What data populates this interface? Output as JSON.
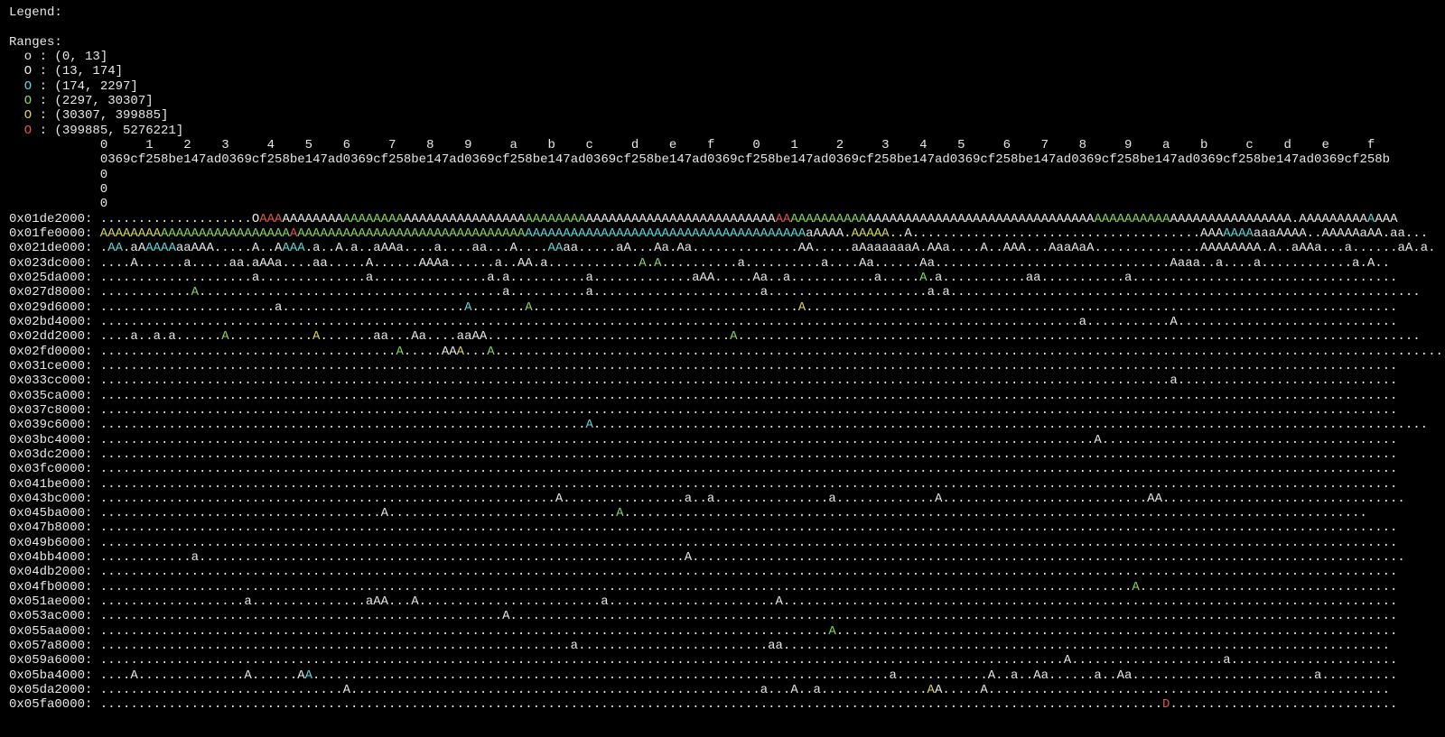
{
  "legend_title": "Legend:",
  "ranges_title": "Ranges:",
  "default_color": "#e8e8e8",
  "ranges": [
    {
      "symbol": "o",
      "label": ": (0, 13]",
      "color": "#e8e8e8"
    },
    {
      "symbol": "O",
      "label": ": (13, 174]",
      "color": "#e8e8e8"
    },
    {
      "symbol": "O",
      "label": ": (174, 2297]",
      "color": "#5fd7d7"
    },
    {
      "symbol": "O",
      "label": ": (2297, 30307]",
      "color": "#87d75f"
    },
    {
      "symbol": "O",
      "label": ": (30307, 399885]",
      "color": "#d7d75f"
    },
    {
      "symbol": "O",
      "label": ": (399885, 5276221]",
      "color": "#e05555"
    }
  ],
  "header": {
    "digits": "0     1    2    3     4    5    6     7    8    9     a    b    c     d    e    f     0    1     2     3    4    5     6    7    8     9    a    b     c    d    e     f",
    "offsets": "0369cf258be147ad0369cf258be147ad0369cf258be147ad0369cf258be147ad0369cf258be147ad0369cf258be147ad0369cf258be147ad0369cf258be147ad0369cf258be147ad0369cf258be147ad0369cf258b",
    "zeros": [
      "0",
      "0",
      "0"
    ]
  },
  "rows": [
    {
      "address": "0x01de2000:",
      "segments": [
        {
          "text": "....................O"
        },
        {
          "text": "AAA",
          "color": "#e05555"
        },
        {
          "text": "AAAAAAAA"
        },
        {
          "text": "AAAAAAAA",
          "color": "#87d75f"
        },
        {
          "text": "AAAAAAAAAAAAAAAA"
        },
        {
          "text": "AAAAAAAA",
          "color": "#87d75f"
        },
        {
          "text": "AAAAAAAAAAAAAAAAAAAAAAAAA"
        },
        {
          "text": "AA",
          "color": "#e05555"
        },
        {
          "text": "AAAAAAAAAA",
          "color": "#87d75f"
        },
        {
          "text": "AAAAAAAAAAAAAAAAAAAAAAAAAAAAAA"
        },
        {
          "text": "AAAAAAAAAA",
          "color": "#87d75f"
        },
        {
          "text": "AAAAAAAAAAAAAAAA.AAAAAAAAA"
        },
        {
          "text": "A",
          "color": "#5fd7d7"
        },
        {
          "text": "AAA"
        }
      ]
    },
    {
      "address": "0x01fe0000:",
      "segments": [
        {
          "text": "AAAAAAAA",
          "color": "#d7d75f"
        },
        {
          "text": "AAAAAAAAAAAAAAAAA",
          "color": "#87d75f"
        },
        {
          "text": "A",
          "color": "#e05555"
        },
        {
          "text": "AAAAAAAAAAAAAAAAAAAAAAAAAAAAAA",
          "color": "#87d75f"
        },
        {
          "text": "AAAAAAAAAAAAAAAAAAAAAAAAAAAAAAAAAAAAA",
          "color": "#5fd7d7"
        },
        {
          "text": "aAAAA."
        },
        {
          "text": "AAAAA",
          "color": "#d7d75f"
        },
        {
          "text": "..A......................................AAA"
        },
        {
          "text": "AAAA",
          "color": "#5fd7d7"
        },
        {
          "text": "aaaAAAA..AAAAAaAA.aa..."
        }
      ]
    },
    {
      "address": "0x021de000:",
      "segments": [
        {
          "text": "."
        },
        {
          "text": "AA",
          "color": "#5fd7d7"
        },
        {
          "text": ".aA"
        },
        {
          "text": "AAAA",
          "color": "#5fd7d7"
        },
        {
          "text": "aaAAA.....A..A"
        },
        {
          "text": "AAA",
          "color": "#5fd7d7"
        },
        {
          "text": ".a..A.a..aAAa....a....aa...A...."
        },
        {
          "text": "AA",
          "color": "#5fd7d7"
        },
        {
          "text": "aa.....aA...Aa.Aa..............AA.....aAaaaaaaA.AAa....A..AAA...AaaAaA..............AAAAAAAA.A..aAAa...a......aA.a."
        }
      ]
    },
    {
      "address": "0x023dc000:",
      "segments": [
        {
          "text": "....A......a.....aa.aAAa....aa.....A......AAAa......a..AA.a............"
        },
        {
          "text": "A",
          "color": "#87d75f"
        },
        {
          "text": "."
        },
        {
          "text": "A",
          "color": "#87d75f"
        },
        {
          "text": "..........a..........a....Aa......Aa...............................Aaaa..a....a............a.A.."
        }
      ]
    },
    {
      "address": "0x025da000:",
      "segments": [
        {
          "text": "....................a..............a...............a.a..........a.............aAA.....Aa..a...........a....."
        },
        {
          "text": "A",
          "color": "#87d75f"
        },
        {
          "text": ".a...........aa...........a..................................."
        }
      ]
    },
    {
      "address": "0x027d8000:",
      "segments": [
        {
          "text": "............"
        },
        {
          "text": "A",
          "color": "#87d75f"
        },
        {
          "text": "........................................a..........a......................a.....................a.a.............................................................."
        }
      ]
    },
    {
      "address": "0x029d6000:",
      "segments": [
        {
          "text": ".......................a........................"
        },
        {
          "text": "A",
          "color": "#5fd7d7"
        },
        {
          "text": "......."
        },
        {
          "text": "A",
          "color": "#87d75f"
        },
        {
          "text": "..................................."
        },
        {
          "text": "A",
          "color": "#d7d75f"
        },
        {
          "text": ".............................................................................."
        }
      ]
    },
    {
      "address": "0x02bd4000:",
      "segments": [
        {
          "text": ".................................................................................................................................a...........A............................."
        }
      ]
    },
    {
      "address": "0x02dd2000:",
      "segments": [
        {
          "text": "....a..a.a......"
        },
        {
          "text": "A",
          "color": "#87d75f"
        },
        {
          "text": "..........."
        },
        {
          "text": "A",
          "color": "#d7d75f"
        },
        {
          "text": ".......aa...Aa....aaAA................................"
        },
        {
          "text": "A",
          "color": "#87d75f"
        },
        {
          "text": ".........................................................................................."
        }
      ]
    },
    {
      "address": "0x02fd0000:",
      "segments": [
        {
          "text": "......................................."
        },
        {
          "text": "A",
          "color": "#87d75f"
        },
        {
          "text": ".....AA"
        },
        {
          "text": "A",
          "color": "#d7d75f"
        },
        {
          "text": "..."
        },
        {
          "text": "A",
          "color": "#87d75f"
        },
        {
          "text": "..............................................................................................................................."
        }
      ]
    },
    {
      "address": "0x031ce000:",
      "segments": [
        {
          "text": "..........................................................................................................................................................................."
        }
      ]
    },
    {
      "address": "0x033cc000:",
      "segments": [
        {
          "text": ".............................................................................................................................................a............................."
        }
      ]
    },
    {
      "address": "0x035ca000:",
      "segments": [
        {
          "text": "..........................................................................................................................................................................."
        }
      ]
    },
    {
      "address": "0x037c8000:",
      "segments": [
        {
          "text": "..........................................................................................................................................................................."
        }
      ]
    },
    {
      "address": "0x039c6000:",
      "segments": [
        {
          "text": "................................................................"
        },
        {
          "text": "A",
          "color": "#5fd7d7"
        },
        {
          "text": ".............................................................................................................."
        }
      ]
    },
    {
      "address": "0x03bc4000:",
      "segments": [
        {
          "text": "...................................................................................................................................A......................................."
        }
      ]
    },
    {
      "address": "0x03dc2000:",
      "segments": [
        {
          "text": "..........................................................................................................................................................................."
        }
      ]
    },
    {
      "address": "0x03fc0000:",
      "segments": [
        {
          "text": "..........................................................................................................................................................................."
        }
      ]
    },
    {
      "address": "0x041be000:",
      "segments": [
        {
          "text": "..........................................................................................................................................................................."
        }
      ]
    },
    {
      "address": "0x043bc000:",
      "segments": [
        {
          "text": "............................................................A................a..a...............a.............A...........................AA................................"
        }
      ]
    },
    {
      "address": "0x045ba000:",
      "segments": [
        {
          "text": ".....................................A.............................."
        },
        {
          "text": "A",
          "color": "#87d75f"
        },
        {
          "text": ".................................................................................................."
        }
      ]
    },
    {
      "address": "0x047b8000:",
      "segments": [
        {
          "text": "..........................................................................................................................................................................."
        }
      ]
    },
    {
      "address": "0x049b6000:",
      "segments": [
        {
          "text": "..........................................................................................................................................................................."
        }
      ]
    },
    {
      "address": "0x04bb4000:",
      "segments": [
        {
          "text": "............a................................................................A.............................................................................................."
        }
      ]
    },
    {
      "address": "0x04db2000:",
      "segments": [
        {
          "text": "..........................................................................................................................................................................."
        }
      ]
    },
    {
      "address": "0x04fb0000:",
      "segments": [
        {
          "text": "........................................................................................................................................"
        },
        {
          "text": "A",
          "color": "#87d75f"
        },
        {
          "text": ".................................."
        }
      ]
    },
    {
      "address": "0x051ae000:",
      "segments": [
        {
          "text": "...................a...............aAA...A........................a......................A................................................................................."
        }
      ]
    },
    {
      "address": "0x053ac000:",
      "segments": [
        {
          "text": ".....................................................A....................................................................................................................."
        }
      ]
    },
    {
      "address": "0x055aa000:",
      "segments": [
        {
          "text": "................................................................................................"
        },
        {
          "text": "A",
          "color": "#87d75f"
        },
        {
          "text": ".........................................................................."
        }
      ]
    },
    {
      "address": "0x057a8000:",
      "segments": [
        {
          "text": "..............................................................a.........................aa................................................................................"
        }
      ]
    },
    {
      "address": "0x059a6000:",
      "segments": [
        {
          "text": "...............................................................................................................................A....................a......................"
        }
      ]
    },
    {
      "address": "0x05ba4000:",
      "segments": [
        {
          "text": "....A..............A......A"
        },
        {
          "text": "A",
          "color": "#5fd7d7"
        },
        {
          "text": "............................................................................a............A..a..Aa......a..Aa........................a.........."
        }
      ]
    },
    {
      "address": "0x05da2000:",
      "segments": [
        {
          "text": "................................A......................................................a...A..a.............."
        },
        {
          "text": "A",
          "color": "#d7d75f"
        },
        {
          "text": "A.....A....................................................."
        }
      ]
    },
    {
      "address": "0x05fa0000:",
      "segments": [
        {
          "text": "............................................................................................................................................"
        },
        {
          "text": "D",
          "color": "#e05555"
        },
        {
          "text": ".............................."
        }
      ]
    }
  ]
}
